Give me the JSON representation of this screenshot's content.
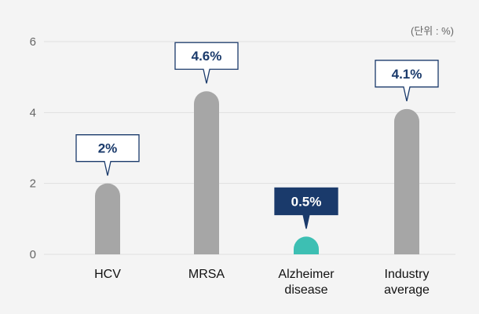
{
  "chart_data": {
    "type": "bar",
    "unit_note": "(단위 : %)",
    "categories": [
      "HCV",
      "MRSA",
      "Alzheimer disease",
      "Industry average"
    ],
    "category_lines": [
      [
        "HCV"
      ],
      [
        "MRSA"
      ],
      [
        "Alzheimer",
        "disease"
      ],
      [
        "Industry",
        "average"
      ]
    ],
    "values": [
      2,
      4.6,
      0.5,
      4.1
    ],
    "data_labels": [
      "2%",
      "4.6%",
      "0.5%",
      "4.1%"
    ],
    "highlight_index": 2,
    "ylim": [
      0,
      6
    ],
    "yticks": [
      0,
      2,
      4,
      6
    ],
    "grid": true,
    "colors": {
      "bar": "#a6a6a6",
      "bar_highlight": "#3dbfb3",
      "label_text": "#1a3a6b",
      "label_border": "#1a3a6b",
      "label_box": "#ffffff",
      "label_box_highlight": "#1a3a6b",
      "label_text_highlight": "#ffffff",
      "grid": "#e0e0e0"
    }
  }
}
